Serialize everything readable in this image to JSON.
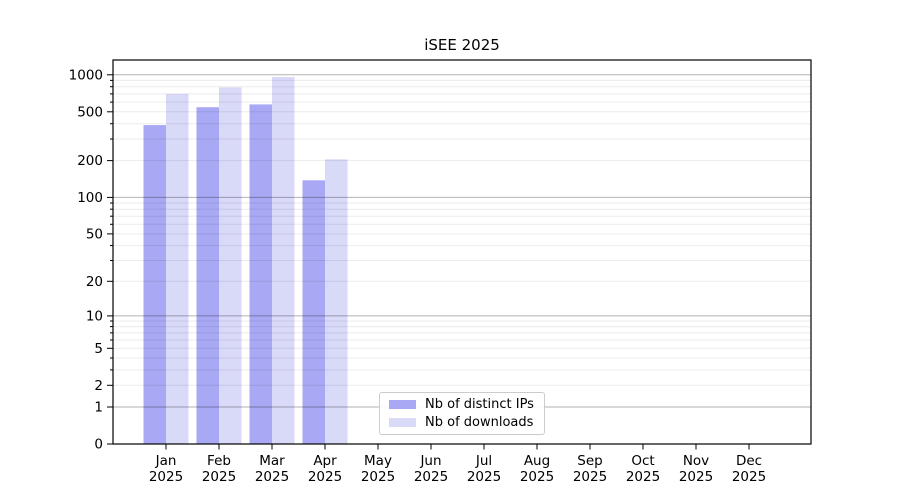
{
  "title": "iSEE 2025",
  "chart_data": {
    "type": "bar",
    "title": "iSEE 2025",
    "xlabel": "",
    "ylabel": "",
    "scale": "log1p",
    "grid": true,
    "legend_position": "lower center",
    "categories": [
      "Jan",
      "Feb",
      "Mar",
      "Apr",
      "May",
      "Jun",
      "Jul",
      "Aug",
      "Sep",
      "Oct",
      "Nov",
      "Dec"
    ],
    "year_label": "2025",
    "series": [
      {
        "name": "Nb of distinct IPs",
        "color": "#a8a8f4",
        "values": [
          390,
          545,
          575,
          138,
          null,
          null,
          null,
          null,
          null,
          null,
          null,
          null
        ]
      },
      {
        "name": "Nb of downloads",
        "color": "#d9d9f8",
        "values": [
          700,
          790,
          960,
          205,
          null,
          null,
          null,
          null,
          null,
          null,
          null,
          null
        ]
      }
    ],
    "yticks": [
      0,
      1,
      2,
      5,
      10,
      20,
      50,
      100,
      200,
      500,
      1000
    ],
    "ylim": [
      0,
      1320
    ]
  },
  "colors": {
    "major_grid": "#b0b0b0",
    "minor_grid": "#ebebeb",
    "spine": "#000000"
  }
}
